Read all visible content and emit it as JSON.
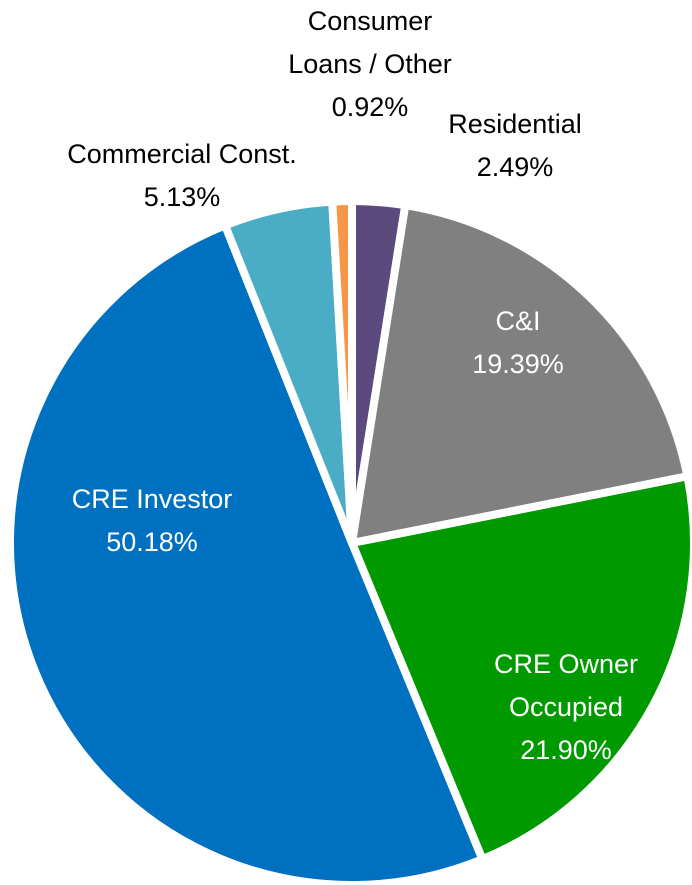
{
  "chart_data": {
    "type": "pie",
    "categories": [
      "Residential",
      "C&I",
      "CRE Owner Occupied",
      "CRE Investor",
      "Commercial Const.",
      "Consumer Loans / Other"
    ],
    "values": [
      2.49,
      19.39,
      21.9,
      50.18,
      5.13,
      0.92
    ],
    "value_labels": [
      "2.49%",
      "19.39%",
      "21.90%",
      "50.18%",
      "5.13%",
      "0.92%"
    ],
    "colors": [
      "#5b4a7e",
      "#808080",
      "#009900",
      "#0070c0",
      "#4bacc6",
      "#f79646"
    ]
  }
}
